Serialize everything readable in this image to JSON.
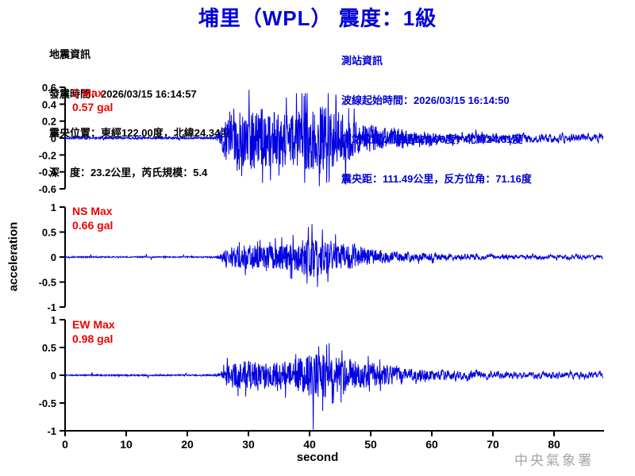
{
  "header": {
    "title": "埔里（WPL） 震度：1級"
  },
  "quake_info": {
    "heading": "地震資訊",
    "origin_time": "發震時間：2026/03/15 16:14:57",
    "epicenter": "震央位置：東經122.00度，北緯24.34度",
    "depth_magnitude": "深　度：23.2公里，芮氏規模：5.4"
  },
  "station_info": {
    "heading": "測站資訊",
    "wave_start_time": "波線起始時間：2026/03/15 16:14:50",
    "station_location": "測站位置：東經120.96度，北緯24.01度",
    "distance_azimuth": "震央距：111.49公里，反方位角：71.16度"
  },
  "footer": {
    "agency": "中央氣象署"
  },
  "colors": {
    "title_blue": "#0000d6",
    "info_blue": "#0000d6",
    "max_red": "#ee0000",
    "trace_blue": "#0000e0",
    "axis_black": "#000000",
    "watermark_gray": "#a5a5a5"
  },
  "chart_data": {
    "type": "line",
    "kind": "seismogram-3-component",
    "title": "埔里（WPL） 震度：1級",
    "xlabel": "second",
    "ylabel": "acceleration",
    "x_range": [
      0,
      88
    ],
    "x_ticks": [
      0,
      10,
      20,
      30,
      40,
      50,
      60,
      70,
      80
    ],
    "sample_dt_sec": 0.05,
    "trace_color": "#0000e0",
    "series": [
      {
        "name": "Z",
        "label": "Z Max",
        "max_text": "0.57 gal",
        "max_value": 0.57,
        "unit": "gal",
        "ylim": [
          -0.6,
          0.6
        ],
        "y_ticks": [
          0.6,
          0.4,
          0.2,
          0,
          -0.2,
          -0.4,
          -0.6
        ],
        "seed": 7,
        "envelope": [
          [
            0,
            0.012
          ],
          [
            24.5,
            0.012
          ],
          [
            25.2,
            0.06
          ],
          [
            26,
            0.22
          ],
          [
            27,
            0.34
          ],
          [
            28,
            0.4
          ],
          [
            30,
            0.38
          ],
          [
            32,
            0.35
          ],
          [
            34,
            0.32
          ],
          [
            36,
            0.35
          ],
          [
            38,
            0.38
          ],
          [
            40,
            0.4
          ],
          [
            42,
            0.38
          ],
          [
            44,
            0.34
          ],
          [
            46,
            0.28
          ],
          [
            48,
            0.21
          ],
          [
            50,
            0.16
          ],
          [
            53,
            0.12
          ],
          [
            56,
            0.09
          ],
          [
            60,
            0.07
          ],
          [
            65,
            0.055
          ],
          [
            70,
            0.05
          ],
          [
            75,
            0.045
          ],
          [
            88,
            0.04
          ]
        ],
        "spikes": [
          [
            3.1,
            0.03
          ],
          [
            6.3,
            -0.028
          ],
          [
            12.8,
            0.032
          ],
          [
            18.7,
            -0.03
          ],
          [
            28.9,
            -0.45
          ],
          [
            30.1,
            0.57
          ],
          [
            33.6,
            -0.5
          ],
          [
            36.2,
            0.48
          ],
          [
            39.1,
            0.5
          ],
          [
            41.6,
            -0.57
          ],
          [
            43.2,
            -0.52
          ],
          [
            45.9,
            -0.55
          ],
          [
            47.3,
            0.35
          ]
        ]
      },
      {
        "name": "NS",
        "label": "NS Max",
        "max_text": "0.66 gal",
        "max_value": 0.66,
        "unit": "gal",
        "ylim": [
          -1,
          1
        ],
        "y_ticks": [
          1,
          0.5,
          0,
          -0.5,
          -1
        ],
        "seed": 13,
        "envelope": [
          [
            0,
            0.012
          ],
          [
            24.5,
            0.012
          ],
          [
            25.5,
            0.06
          ],
          [
            26.5,
            0.18
          ],
          [
            28,
            0.22
          ],
          [
            30,
            0.24
          ],
          [
            32,
            0.22
          ],
          [
            34,
            0.24
          ],
          [
            36,
            0.26
          ],
          [
            38,
            0.3
          ],
          [
            39.5,
            0.38
          ],
          [
            41,
            0.42
          ],
          [
            42.5,
            0.38
          ],
          [
            44,
            0.3
          ],
          [
            46,
            0.25
          ],
          [
            48,
            0.2
          ],
          [
            50,
            0.16
          ],
          [
            53,
            0.12
          ],
          [
            56,
            0.09
          ],
          [
            60,
            0.07
          ],
          [
            65,
            0.05
          ],
          [
            70,
            0.045
          ],
          [
            88,
            0.035
          ]
        ],
        "spikes": [
          [
            4.2,
            0.05
          ],
          [
            13.3,
            0.06
          ],
          [
            14.1,
            -0.055
          ],
          [
            19.4,
            0.05
          ],
          [
            39.8,
            0.6
          ],
          [
            40.4,
            0.66
          ],
          [
            41.3,
            -0.6
          ],
          [
            42.1,
            0.55
          ],
          [
            43,
            -0.5
          ]
        ]
      },
      {
        "name": "EW",
        "label": "EW Max",
        "max_text": "0.98 gal",
        "max_value": 0.98,
        "unit": "gal",
        "ylim": [
          -1,
          1
        ],
        "y_ticks": [
          1,
          0.5,
          0,
          -0.5,
          -1
        ],
        "seed": 29,
        "envelope": [
          [
            0,
            0.012
          ],
          [
            24.5,
            0.012
          ],
          [
            25.5,
            0.06
          ],
          [
            26.5,
            0.2
          ],
          [
            28,
            0.24
          ],
          [
            30,
            0.26
          ],
          [
            32,
            0.23
          ],
          [
            34,
            0.22
          ],
          [
            36,
            0.26
          ],
          [
            38,
            0.3
          ],
          [
            40,
            0.38
          ],
          [
            42,
            0.42
          ],
          [
            44,
            0.34
          ],
          [
            46,
            0.3
          ],
          [
            48,
            0.26
          ],
          [
            50,
            0.22
          ],
          [
            53,
            0.17
          ],
          [
            56,
            0.13
          ],
          [
            60,
            0.1
          ],
          [
            65,
            0.08
          ],
          [
            70,
            0.06
          ],
          [
            80,
            0.05
          ],
          [
            88,
            0.045
          ]
        ],
        "spikes": [
          [
            4.4,
            0.05
          ],
          [
            13.6,
            -0.05
          ],
          [
            19.8,
            0.045
          ],
          [
            40.6,
            -0.98
          ],
          [
            41.5,
            0.52
          ],
          [
            42.8,
            0.55
          ],
          [
            43.9,
            -0.5
          ],
          [
            45.3,
            0.45
          ]
        ]
      }
    ]
  }
}
